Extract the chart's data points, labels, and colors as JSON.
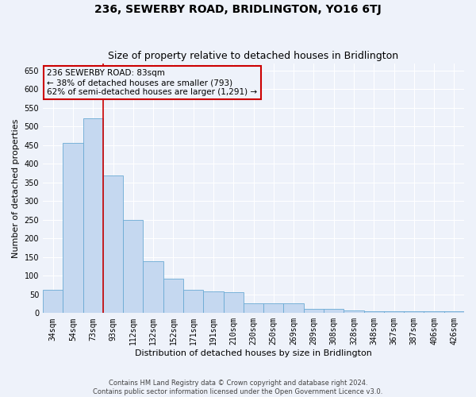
{
  "title": "236, SEWERBY ROAD, BRIDLINGTON, YO16 6TJ",
  "subtitle": "Size of property relative to detached houses in Bridlington",
  "xlabel": "Distribution of detached houses by size in Bridlington",
  "ylabel": "Number of detached properties",
  "categories": [
    "34sqm",
    "54sqm",
    "73sqm",
    "93sqm",
    "112sqm",
    "132sqm",
    "152sqm",
    "171sqm",
    "191sqm",
    "210sqm",
    "230sqm",
    "250sqm",
    "269sqm",
    "289sqm",
    "308sqm",
    "328sqm",
    "348sqm",
    "367sqm",
    "387sqm",
    "406sqm",
    "426sqm"
  ],
  "values": [
    63,
    457,
    522,
    370,
    250,
    140,
    93,
    63,
    58,
    56,
    27,
    26,
    27,
    11,
    11,
    8,
    6,
    5,
    6,
    5,
    5
  ],
  "bar_color": "#c5d8f0",
  "bar_edge_color": "#6aaad4",
  "annotation_text_line1": "236 SEWERBY ROAD: 83sqm",
  "annotation_text_line2": "← 38% of detached houses are smaller (793)",
  "annotation_text_line3": "62% of semi-detached houses are larger (1,291) →",
  "annotation_box_color": "#cc0000",
  "vline_index": 2,
  "ylim": [
    0,
    670
  ],
  "yticks": [
    0,
    50,
    100,
    150,
    200,
    250,
    300,
    350,
    400,
    450,
    500,
    550,
    600,
    650
  ],
  "footnote1": "Contains HM Land Registry data © Crown copyright and database right 2024.",
  "footnote2": "Contains public sector information licensed under the Open Government Licence v3.0.",
  "bg_color": "#eef2fa",
  "grid_color": "#ffffff",
  "title_fontsize": 10,
  "subtitle_fontsize": 9,
  "axis_label_fontsize": 8,
  "tick_fontsize": 7,
  "annotation_fontsize": 7.5,
  "footnote_fontsize": 6
}
